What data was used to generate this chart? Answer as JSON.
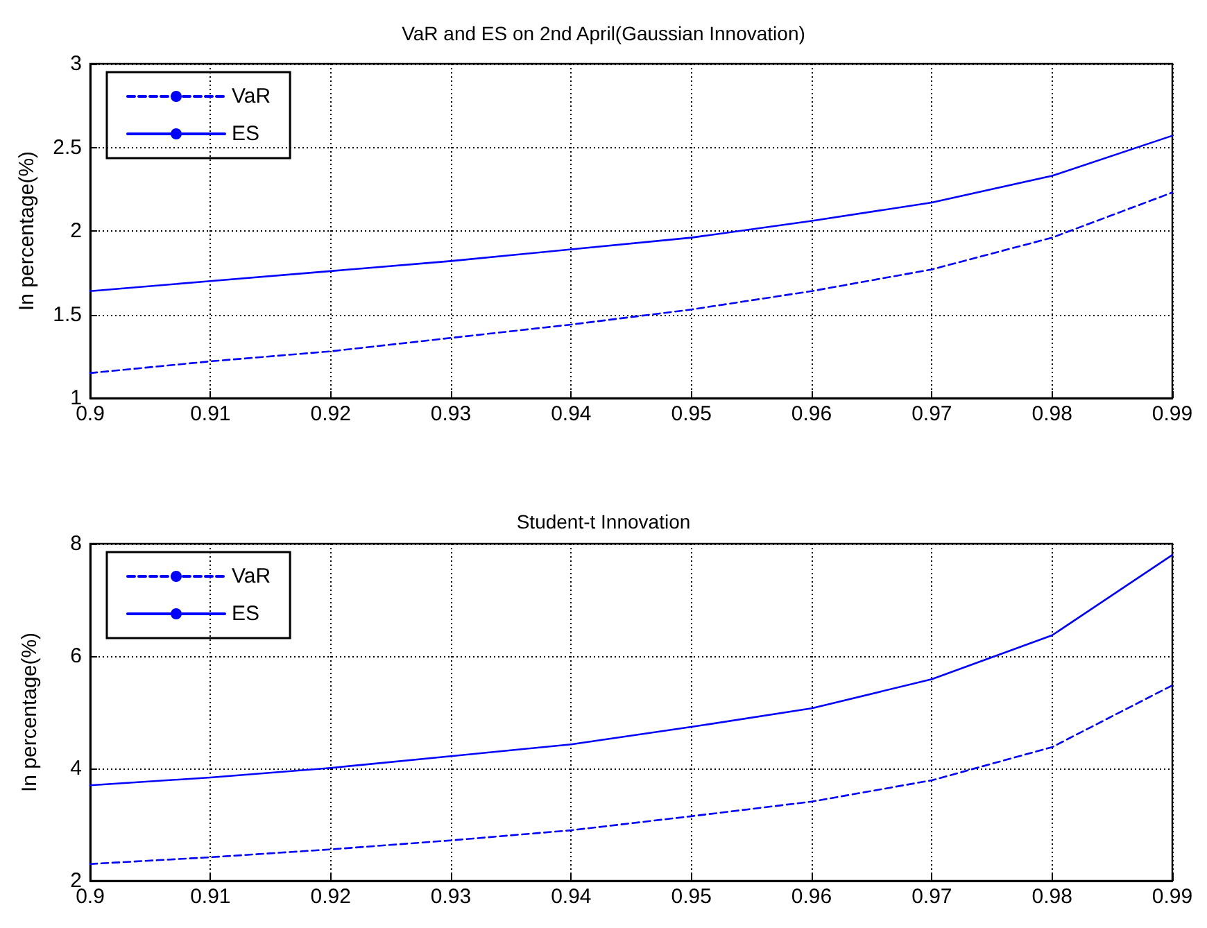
{
  "chart_data": [
    {
      "type": "line",
      "title": "VaR and ES on 2nd April(Gaussian Innovation)",
      "ylabel": "In percentage(%)",
      "x": [
        0.9,
        0.91,
        0.92,
        0.93,
        0.94,
        0.95,
        0.96,
        0.97,
        0.98,
        0.99
      ],
      "series": [
        {
          "name": "VaR",
          "color": "#0000ff",
          "line_style": "dashed",
          "values": [
            1.15,
            1.22,
            1.28,
            1.36,
            1.44,
            1.53,
            1.64,
            1.77,
            1.96,
            2.23
          ]
        },
        {
          "name": "ES",
          "color": "#0000ff",
          "line_style": "solid",
          "values": [
            1.64,
            1.7,
            1.76,
            1.82,
            1.89,
            1.96,
            2.06,
            2.17,
            2.33,
            2.57
          ]
        }
      ],
      "xlim": [
        0.9,
        0.99
      ],
      "xticks": [
        0.9,
        0.91,
        0.92,
        0.93,
        0.94,
        0.95,
        0.96,
        0.97,
        0.98,
        0.99
      ],
      "ylim": [
        1,
        3
      ],
      "yticks": [
        1,
        1.5,
        2,
        2.5,
        3
      ],
      "grid": true,
      "legend": "top left",
      "marker": "none"
    },
    {
      "type": "line",
      "title": "Student-t Innovation",
      "ylabel": "In percentage(%)",
      "x": [
        0.9,
        0.91,
        0.92,
        0.93,
        0.94,
        0.95,
        0.96,
        0.97,
        0.98,
        0.99
      ],
      "series": [
        {
          "name": "VaR",
          "color": "#0000ff",
          "line_style": "dashed",
          "values": [
            2.3,
            2.42,
            2.56,
            2.72,
            2.9,
            3.15,
            3.41,
            3.79,
            4.38,
            5.48
          ]
        },
        {
          "name": "ES",
          "color": "#0000ff",
          "line_style": "solid",
          "values": [
            3.7,
            3.84,
            4.01,
            4.22,
            4.43,
            4.74,
            5.07,
            5.59,
            6.37,
            7.8
          ]
        }
      ],
      "xlim": [
        0.9,
        0.99
      ],
      "xticks": [
        0.9,
        0.91,
        0.92,
        0.93,
        0.94,
        0.95,
        0.96,
        0.97,
        0.98,
        0.99
      ],
      "ylim": [
        2,
        8
      ],
      "yticks": [
        2,
        4,
        6,
        8
      ],
      "grid": true,
      "legend": "top left",
      "marker": "none"
    }
  ]
}
